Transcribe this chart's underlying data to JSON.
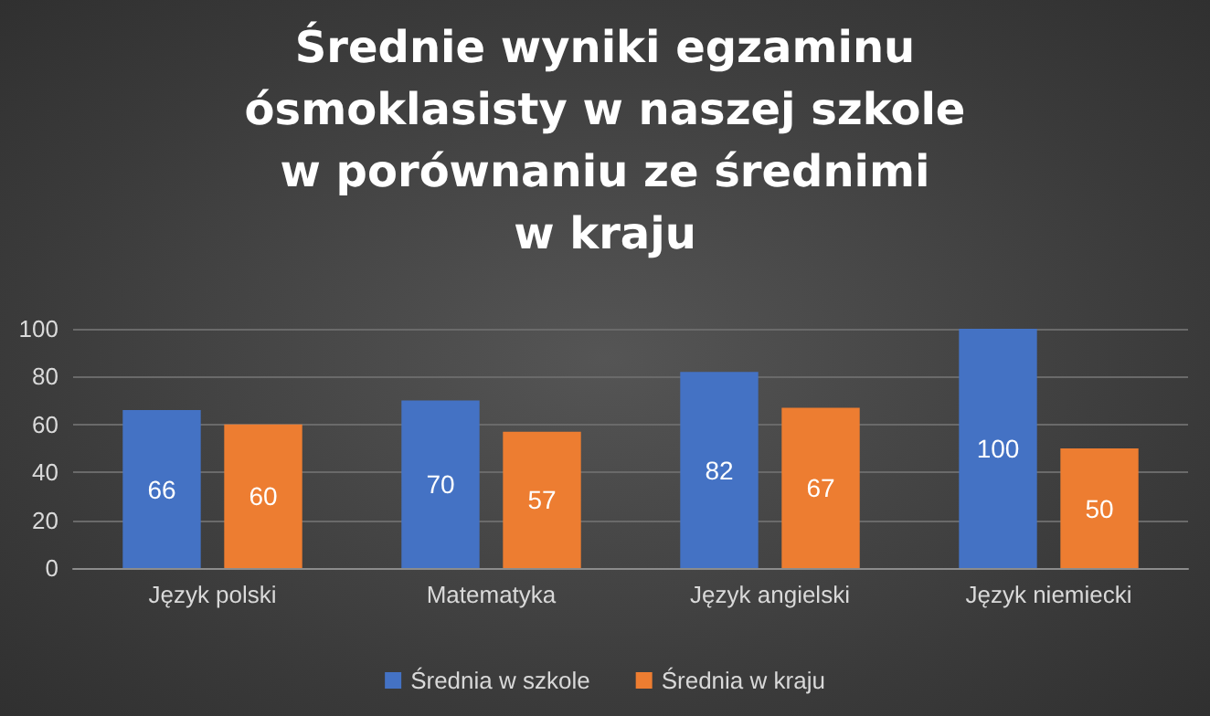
{
  "chart_data": {
    "type": "bar",
    "title": "Średnie wyniki egzaminu\nósmoklasisty w naszej szkole\nw porównaniu ze średnimi\nw kraju",
    "categories": [
      "Język polski",
      "Matematyka",
      "Język angielski",
      "Język niemiecki"
    ],
    "series": [
      {
        "name": "Średnia w szkole",
        "color": "#4472c4",
        "values": [
          66,
          70,
          82,
          100
        ]
      },
      {
        "name": "Średnia w kraju",
        "color": "#ed7d31",
        "values": [
          60,
          57,
          67,
          50
        ]
      }
    ],
    "ylim": [
      0,
      100
    ],
    "yticks": [
      0,
      20,
      40,
      60,
      80,
      100
    ],
    "grid": "y",
    "legend": "bottom",
    "data_labels": true
  }
}
